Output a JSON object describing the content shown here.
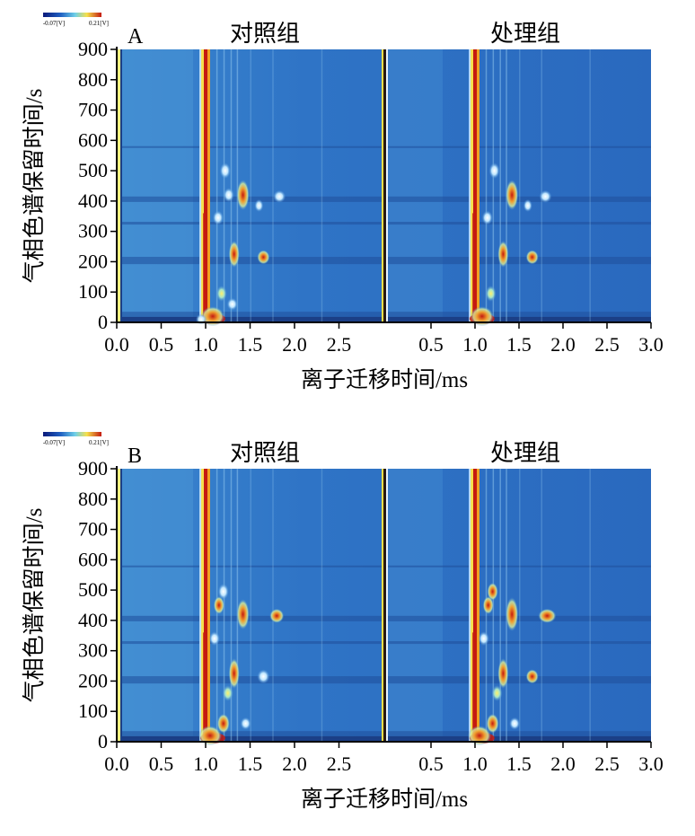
{
  "chart_data": [
    {
      "type": "heatmap",
      "panel_label": "A",
      "colorbar": {
        "min_label": "-0.07[V]",
        "max_label": "0.21[V]"
      },
      "panels": [
        {
          "title": "对照组",
          "x_ticks": [
            "0.0",
            "0.5",
            "1.0",
            "1.5",
            "2.0",
            "2.5"
          ],
          "x_values": [
            0.0,
            0.5,
            1.0,
            1.5,
            2.0,
            2.5
          ]
        },
        {
          "title": "处理组",
          "x_ticks": [
            "0.5",
            "1.0",
            "1.5",
            "2.0",
            "2.5",
            "3.0"
          ],
          "x_values": [
            0.5,
            1.0,
            1.5,
            2.0,
            2.5,
            3.0
          ]
        }
      ],
      "ylabel": "气相色谱保留时间/s",
      "xlabel": "离子迁移时间/ms",
      "y_ticks": [
        "0",
        "100",
        "200",
        "300",
        "400",
        "500",
        "600",
        "700",
        "800",
        "900"
      ],
      "ylim": [
        0,
        900
      ],
      "xlim": [
        0,
        3.0
      ]
    },
    {
      "type": "heatmap",
      "panel_label": "B",
      "colorbar": {
        "min_label": "-0.07[V]",
        "max_label": "0.21[V]"
      },
      "panels": [
        {
          "title": "对照组",
          "x_ticks": [
            "0.0",
            "0.5",
            "1.0",
            "1.5",
            "2.0",
            "2.5"
          ],
          "x_values": [
            0.0,
            0.5,
            1.0,
            1.5,
            2.0,
            2.5
          ]
        },
        {
          "title": "处理组",
          "x_ticks": [
            "0.5",
            "1.0",
            "1.5",
            "2.0",
            "2.5",
            "3.0"
          ],
          "x_values": [
            0.5,
            1.0,
            1.5,
            2.0,
            2.5,
            3.0
          ]
        }
      ],
      "ylabel": "气相色谱保留时间/s",
      "xlabel": "离子迁移时间/ms",
      "y_ticks": [
        "0",
        "100",
        "200",
        "300",
        "400",
        "500",
        "600",
        "700",
        "800",
        "900"
      ],
      "ylim": [
        0,
        900
      ],
      "xlim": [
        0,
        3.0
      ]
    }
  ],
  "colors": {
    "background": "#2d6fc4",
    "band_dark": "#2458a6",
    "rip_red": "#c41a10",
    "rip_orange": "#f2a022",
    "rip_yellow": "#ffe866",
    "spot_white": "#e8f4ff",
    "spot_red": "#d42a14"
  }
}
